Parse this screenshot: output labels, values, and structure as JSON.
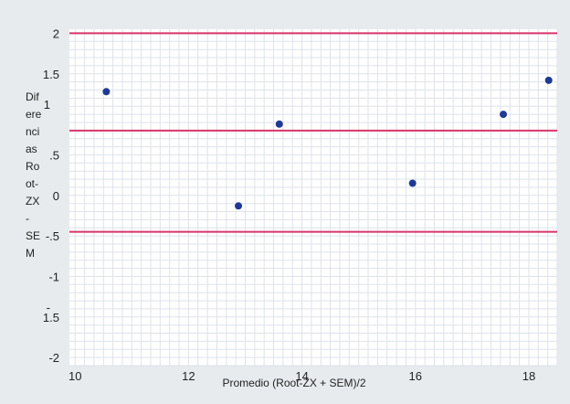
{
  "chart_data": {
    "type": "scatter",
    "title": "",
    "xlabel": "Promedio (Root-ZX + SEM)/2",
    "ylabel_lines": [
      "Dif",
      "ere",
      "nci",
      "as",
      "Ro",
      "ot-",
      "ZX",
      "-",
      "SE",
      "M"
    ],
    "xlim": [
      9.9,
      18.5
    ],
    "ylim": [
      -2.1,
      2.05
    ],
    "x_ticks": [
      10,
      12,
      14,
      16,
      18
    ],
    "y_ticks": [
      {
        "value": 2,
        "label": "2"
      },
      {
        "value": 1.5,
        "label": "1.5"
      },
      {
        "value": 0.5,
        "label": ".5"
      },
      {
        "value": 0,
        "label": "0"
      },
      {
        "value": -0.5,
        "label": "-.5"
      },
      {
        "value": -1,
        "label": "-1"
      },
      {
        "value": -1.5,
        "label": "1.5"
      },
      {
        "value": -2,
        "label": "-2"
      }
    ],
    "y_hidden_ticks": [
      {
        "value": 1,
        "label": "1"
      },
      {
        "value": -1.5,
        "label": "-"
      }
    ],
    "reference_lines": [
      2.0,
      0.8,
      -0.45
    ],
    "reference_color": "#d8356a",
    "point_color": "#1f3a93",
    "grid": true,
    "points": [
      {
        "x": 10.55,
        "y": 1.28
      },
      {
        "x": 12.88,
        "y": -0.13
      },
      {
        "x": 13.6,
        "y": 0.88
      },
      {
        "x": 15.95,
        "y": 0.15
      },
      {
        "x": 17.55,
        "y": 1.0
      },
      {
        "x": 18.35,
        "y": 1.42
      }
    ]
  }
}
